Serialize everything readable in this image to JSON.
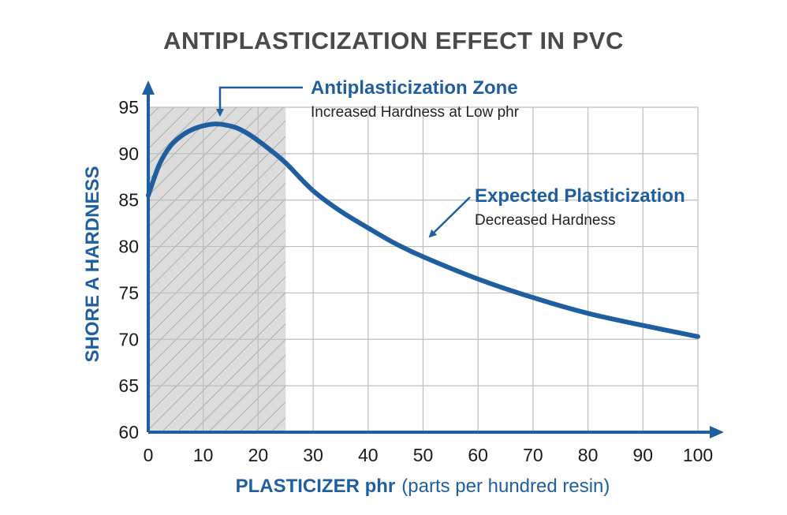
{
  "chart_data": {
    "type": "line",
    "title": "ANTIPLASTICIZATION EFFECT IN PVC",
    "xlabel_bold": "PLASTICIZER phr",
    "xlabel_rest": "(parts per hundred resin)",
    "ylabel": "SHORE A HARDNESS",
    "xlim": [
      0,
      100
    ],
    "ylim": [
      60,
      95
    ],
    "xticks": [
      "0",
      "10",
      "20",
      "30",
      "40",
      "50",
      "60",
      "70",
      "80",
      "90",
      "100"
    ],
    "yticks": [
      "60",
      "65",
      "70",
      "75",
      "80",
      "85",
      "90",
      "95"
    ],
    "grid": true,
    "shaded_region": {
      "x": [
        0,
        25
      ],
      "pattern": "diagonal-hatch"
    },
    "series": [
      {
        "x": [
          0,
          2,
          4,
          6,
          8,
          10,
          12,
          14,
          16,
          18,
          20,
          22,
          25,
          30,
          35,
          40,
          45,
          50,
          60,
          70,
          80,
          90,
          100
        ],
        "values": [
          85.5,
          88.8,
          90.8,
          91.9,
          92.6,
          93.0,
          93.2,
          93.1,
          92.8,
          92.2,
          91.4,
          90.5,
          89.0,
          86.0,
          83.8,
          82.0,
          80.3,
          78.9,
          76.5,
          74.5,
          72.8,
          71.5,
          70.3
        ]
      }
    ],
    "annotations": [
      {
        "title": "Antiplasticization Zone",
        "subtitle": "Increased Hardness at Low phr"
      },
      {
        "title": "Expected Plasticization",
        "subtitle": "Decreased Hardness"
      }
    ],
    "colors": {
      "line": "#1f5fa0",
      "axis": "#1f5fa0",
      "grid": "#bdbdbd",
      "shade": "#d9d9d9",
      "hatch": "#9a9a9a",
      "title": "#4a4a4a"
    }
  }
}
